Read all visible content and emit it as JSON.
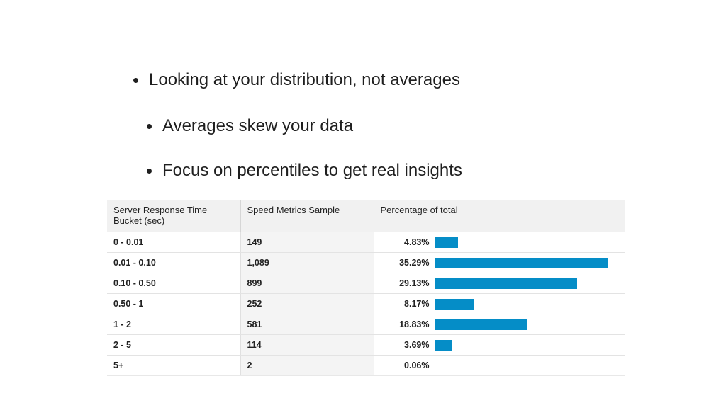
{
  "bullets": [
    "Looking at your distribution, not averages",
    "Averages skew your data",
    "Focus on percentiles to get real insights"
  ],
  "table": {
    "headers": {
      "col1_line1": "Server Response Time",
      "col1_line2": "Bucket (sec)",
      "col2": "Speed Metrics Sample",
      "col3": "Percentage of total"
    },
    "bar_color": "#058dc7",
    "bar_max_percent": 35.29,
    "rows": [
      {
        "bucket": "0 - 0.01",
        "sample": "149",
        "percent_label": "4.83%",
        "percent": 4.83
      },
      {
        "bucket": "0.01 - 0.10",
        "sample": "1,089",
        "percent_label": "35.29%",
        "percent": 35.29
      },
      {
        "bucket": "0.10 - 0.50",
        "sample": "899",
        "percent_label": "29.13%",
        "percent": 29.13
      },
      {
        "bucket": "0.50 - 1",
        "sample": "252",
        "percent_label": "8.17%",
        "percent": 8.17
      },
      {
        "bucket": "1 - 2",
        "sample": "581",
        "percent_label": "18.83%",
        "percent": 18.83
      },
      {
        "bucket": "2 - 5",
        "sample": "114",
        "percent_label": "3.69%",
        "percent": 3.69
      },
      {
        "bucket": "5+",
        "sample": "2",
        "percent_label": "0.06%",
        "percent": 0.06
      }
    ]
  }
}
